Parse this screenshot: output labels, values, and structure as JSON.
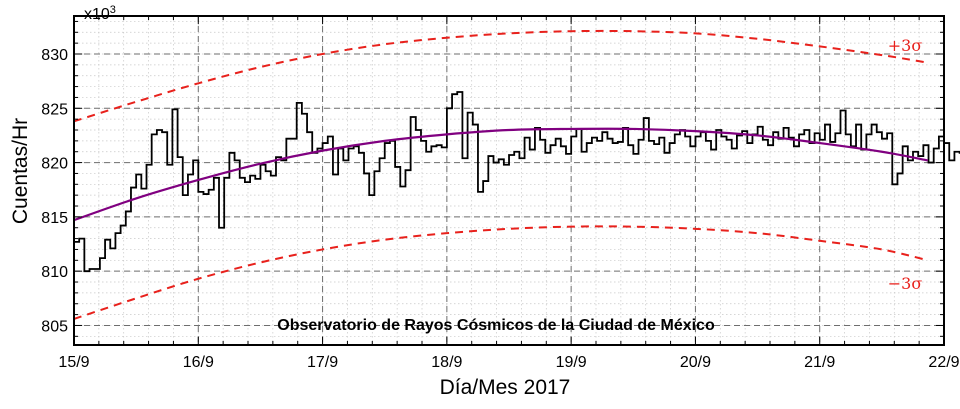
{
  "chart_data": {
    "type": "line",
    "title": "Observatorio de Rayos Cósmicos de la Ciudad de México",
    "xlabel": "Día/Mes 2017",
    "ylabel": "Cuentas/Hr",
    "y_multiplier_label": "x10",
    "y_multiplier_exp": "3",
    "x_unit": "days since 15/9 00:00",
    "xlim": [
      0,
      7
    ],
    "ylim": [
      803.2,
      833.5
    ],
    "x_ticks": [
      0,
      1,
      2,
      3,
      4,
      5,
      6,
      7
    ],
    "x_tick_labels": [
      "15/9",
      "16/9",
      "17/9",
      "18/9",
      "19/9",
      "20/9",
      "21/9",
      "22/9"
    ],
    "y_ticks": [
      805,
      810,
      815,
      820,
      825,
      830
    ],
    "y_tick_labels": [
      "805",
      "810",
      "815",
      "820",
      "825",
      "830"
    ],
    "grid": true,
    "series": [
      {
        "name": "counts",
        "style": "step",
        "color": "#000000",
        "x_start": 0.0,
        "x_step": 0.04167,
        "values": [
          812.7,
          813.0,
          810.0,
          810.2,
          810.2,
          811.2,
          812.9,
          812.1,
          813.5,
          814.2,
          815.5,
          817.7,
          818.9,
          817.6,
          819.8,
          822.6,
          823.0,
          822.8,
          819.8,
          824.9,
          820.5,
          817.0,
          818.9,
          820.2,
          817.3,
          817.1,
          817.5,
          818.6,
          814.0,
          818.6,
          820.9,
          820.2,
          818.6,
          818.2,
          818.8,
          818.5,
          819.8,
          819.2,
          818.8,
          820.5,
          820.2,
          822.2,
          822.2,
          825.5,
          824.5,
          822.8,
          820.9,
          821.3,
          821.8,
          822.4,
          818.9,
          821.3,
          820.2,
          821.3,
          821.5,
          820.9,
          819.0,
          817.0,
          819.2,
          820.4,
          821.8,
          822.0,
          819.6,
          817.8,
          819.3,
          824.2,
          823.0,
          822.0,
          821.0,
          821.5,
          821.6,
          821.4,
          825.0,
          826.3,
          826.5,
          820.4,
          824.6,
          823.5,
          817.3,
          818.3,
          820.6,
          820.0,
          820.3,
          819.8,
          820.7,
          821.0,
          820.4,
          822.3,
          821.2,
          823.2,
          822.1,
          820.9,
          821.6,
          822.2,
          821.5,
          820.8,
          822.4,
          823.1,
          821.0,
          821.8,
          822.3,
          822.0,
          822.8,
          822.2,
          821.8,
          821.9,
          823.2,
          821.6,
          820.8,
          822.1,
          824.1,
          822.0,
          821.7,
          822.3,
          820.9,
          821.8,
          822.6,
          823.0,
          822.4,
          821.5,
          822.4,
          822.8,
          822.0,
          821.2,
          823.0,
          822.4,
          822.1,
          821.3,
          822.5,
          822.9,
          821.8,
          822.6,
          823.3,
          822.1,
          821.6,
          822.8,
          822.2,
          823.2,
          822.3,
          821.5,
          822.6,
          823.0,
          821.8,
          822.7,
          822.1,
          823.5,
          821.9,
          822.7,
          824.8,
          822.6,
          821.5,
          823.5,
          821.2,
          822.6,
          823.5,
          822.8,
          822.2,
          822.7,
          818.0,
          819.0,
          821.5,
          820.2,
          821.0,
          820.6,
          821.6,
          820.0,
          821.3,
          822.4,
          821.8,
          820.2,
          821.0,
          820.9,
          822.1,
          821.7,
          820.5,
          822.2,
          822.6,
          823.2,
          821.3
        ]
      },
      {
        "name": "fit",
        "style": "line",
        "color": "#800080",
        "x": [
          0.0,
          0.5,
          1.0,
          1.5,
          2.0,
          2.5,
          3.0,
          3.5,
          4.0,
          4.5,
          5.0,
          5.5,
          6.0,
          6.5,
          6.87
        ],
        "values": [
          814.7,
          816.7,
          818.4,
          819.9,
          821.1,
          822.0,
          822.6,
          823.0,
          823.1,
          823.1,
          822.9,
          822.5,
          821.8,
          821.0,
          820.2
        ]
      },
      {
        "name": "+3σ",
        "style": "dashed",
        "color": "#e8211c",
        "x": [
          0.0,
          0.5,
          1.0,
          1.5,
          2.0,
          2.5,
          3.0,
          3.5,
          4.0,
          4.5,
          5.0,
          5.5,
          6.0,
          6.5,
          6.87
        ],
        "values": [
          823.8,
          825.6,
          827.3,
          828.8,
          830.0,
          830.9,
          831.5,
          831.9,
          832.1,
          832.1,
          831.9,
          831.4,
          830.7,
          829.9,
          829.2
        ]
      },
      {
        "name": "−3σ",
        "style": "dashed",
        "color": "#e8211c",
        "x": [
          0.0,
          0.5,
          1.0,
          1.5,
          2.0,
          2.5,
          3.0,
          3.5,
          4.0,
          4.5,
          5.0,
          5.5,
          6.0,
          6.5,
          6.87
        ],
        "values": [
          805.6,
          807.5,
          809.3,
          810.8,
          812.0,
          812.9,
          813.5,
          813.9,
          814.1,
          814.1,
          813.9,
          813.5,
          812.8,
          812.0,
          811.0
        ]
      }
    ],
    "annotations": [
      {
        "text": "+3σ",
        "x": 6.9,
        "y": 830.2
      },
      {
        "text": "−3σ",
        "x": 6.9,
        "y": 809.3
      }
    ]
  }
}
